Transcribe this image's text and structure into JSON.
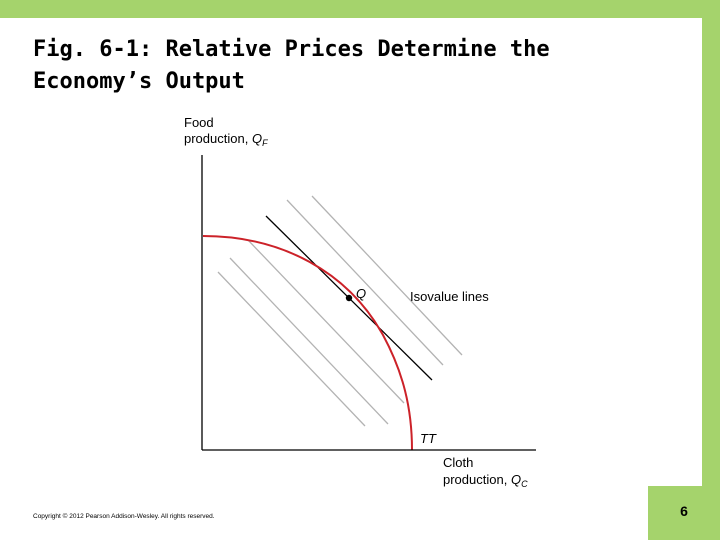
{
  "slide": {
    "title_line1": "Fig. 6-1: Relative Prices Determine the",
    "title_line2": "Economy’s Output",
    "copyright": "Copyright © 2012 Pearson Addison-Wesley. All rights reserved.",
    "page_number": "6",
    "accent_color": "#a5d36c"
  },
  "diagram": {
    "y_axis_label_line1": "Food",
    "y_axis_label_line2": "production, ",
    "y_axis_symbol": "Q",
    "y_axis_subscript": "F",
    "x_axis_label_line1": "Cloth",
    "x_axis_label_line2": "production, ",
    "x_axis_symbol": "Q",
    "x_axis_subscript": "C",
    "point_label": "Q",
    "isovalue_label": "Isovalue lines",
    "curve_label": "TT",
    "curve_color": "#cc2229",
    "isovalue_color": "#b3b3b3",
    "tangent_color": "#000000"
  }
}
